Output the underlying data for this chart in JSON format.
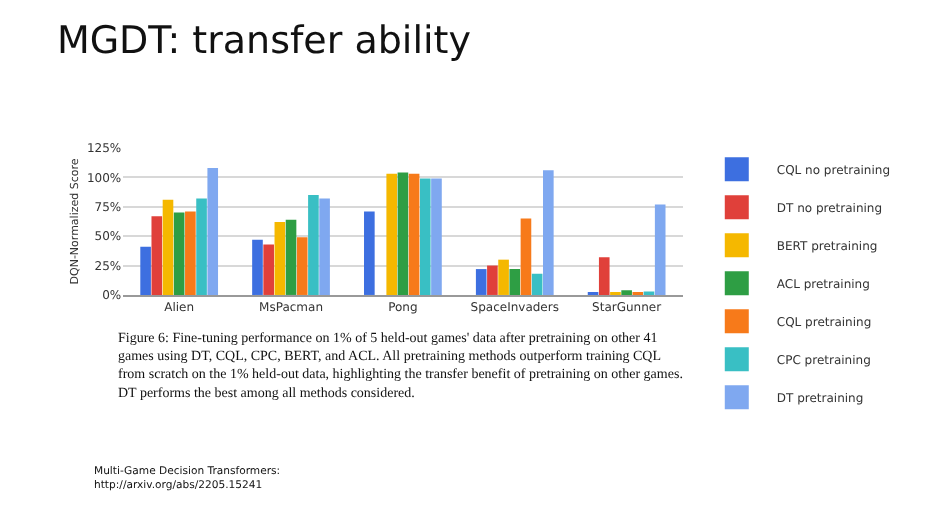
{
  "chart_data": {
    "type": "bar",
    "title": "MGDT: transfer ability",
    "ylabel": "DQN-Normalized Score",
    "categories": [
      "Alien",
      "MsPacman",
      "Pong",
      "SpaceInvaders",
      "StarGunner"
    ],
    "series": [
      {
        "name": "CQL no pretraining",
        "color": "#3d6fe0",
        "values": [
          41,
          47,
          71,
          22,
          2
        ]
      },
      {
        "name": "DT no pretraining",
        "color": "#e0403a",
        "values": [
          67,
          43,
          null,
          25,
          32
        ]
      },
      {
        "name": "BERT pretraining",
        "color": "#f5b800",
        "values": [
          81,
          62,
          103,
          30,
          2
        ]
      },
      {
        "name": "ACL pretraining",
        "color": "#2e9e44",
        "values": [
          70,
          64,
          104,
          22,
          4
        ]
      },
      {
        "name": "CQL pretraining",
        "color": "#f77a1a",
        "values": [
          71,
          49,
          103,
          65,
          2
        ]
      },
      {
        "name": "CPC pretraining",
        "color": "#39bfc4",
        "values": [
          82,
          85,
          99,
          18,
          3
        ]
      },
      {
        "name": "DT pretraining",
        "color": "#7fa8f0",
        "values": [
          108,
          82,
          99,
          106,
          77
        ]
      }
    ],
    "ylim": [
      0,
      125
    ],
    "yticks": [
      {
        "value": 0,
        "label": "0%"
      },
      {
        "value": 25,
        "label": "25%"
      },
      {
        "value": 50,
        "label": "50%"
      },
      {
        "value": 75,
        "label": "75%"
      },
      {
        "value": 100,
        "label": "100%"
      },
      {
        "value": 125,
        "label": "125%"
      }
    ],
    "grid": "y",
    "legend": "right",
    "annotations": [
      "Figure 6: Fine-tuning performance on 1% of 5 held-out games' data after pretraining on other 41\ngames using DT, CQL, CPC, BERT, and ACL. All pretraining methods outperform training CQL\nfrom scratch on the 1% held-out data, highlighting the transfer benefit of pretraining on other games.\nDT performs the best among all methods considered.",
      "Multi-Game Decision Transformers:\nhttp://arxiv.org/abs/2205.15241"
    ]
  }
}
